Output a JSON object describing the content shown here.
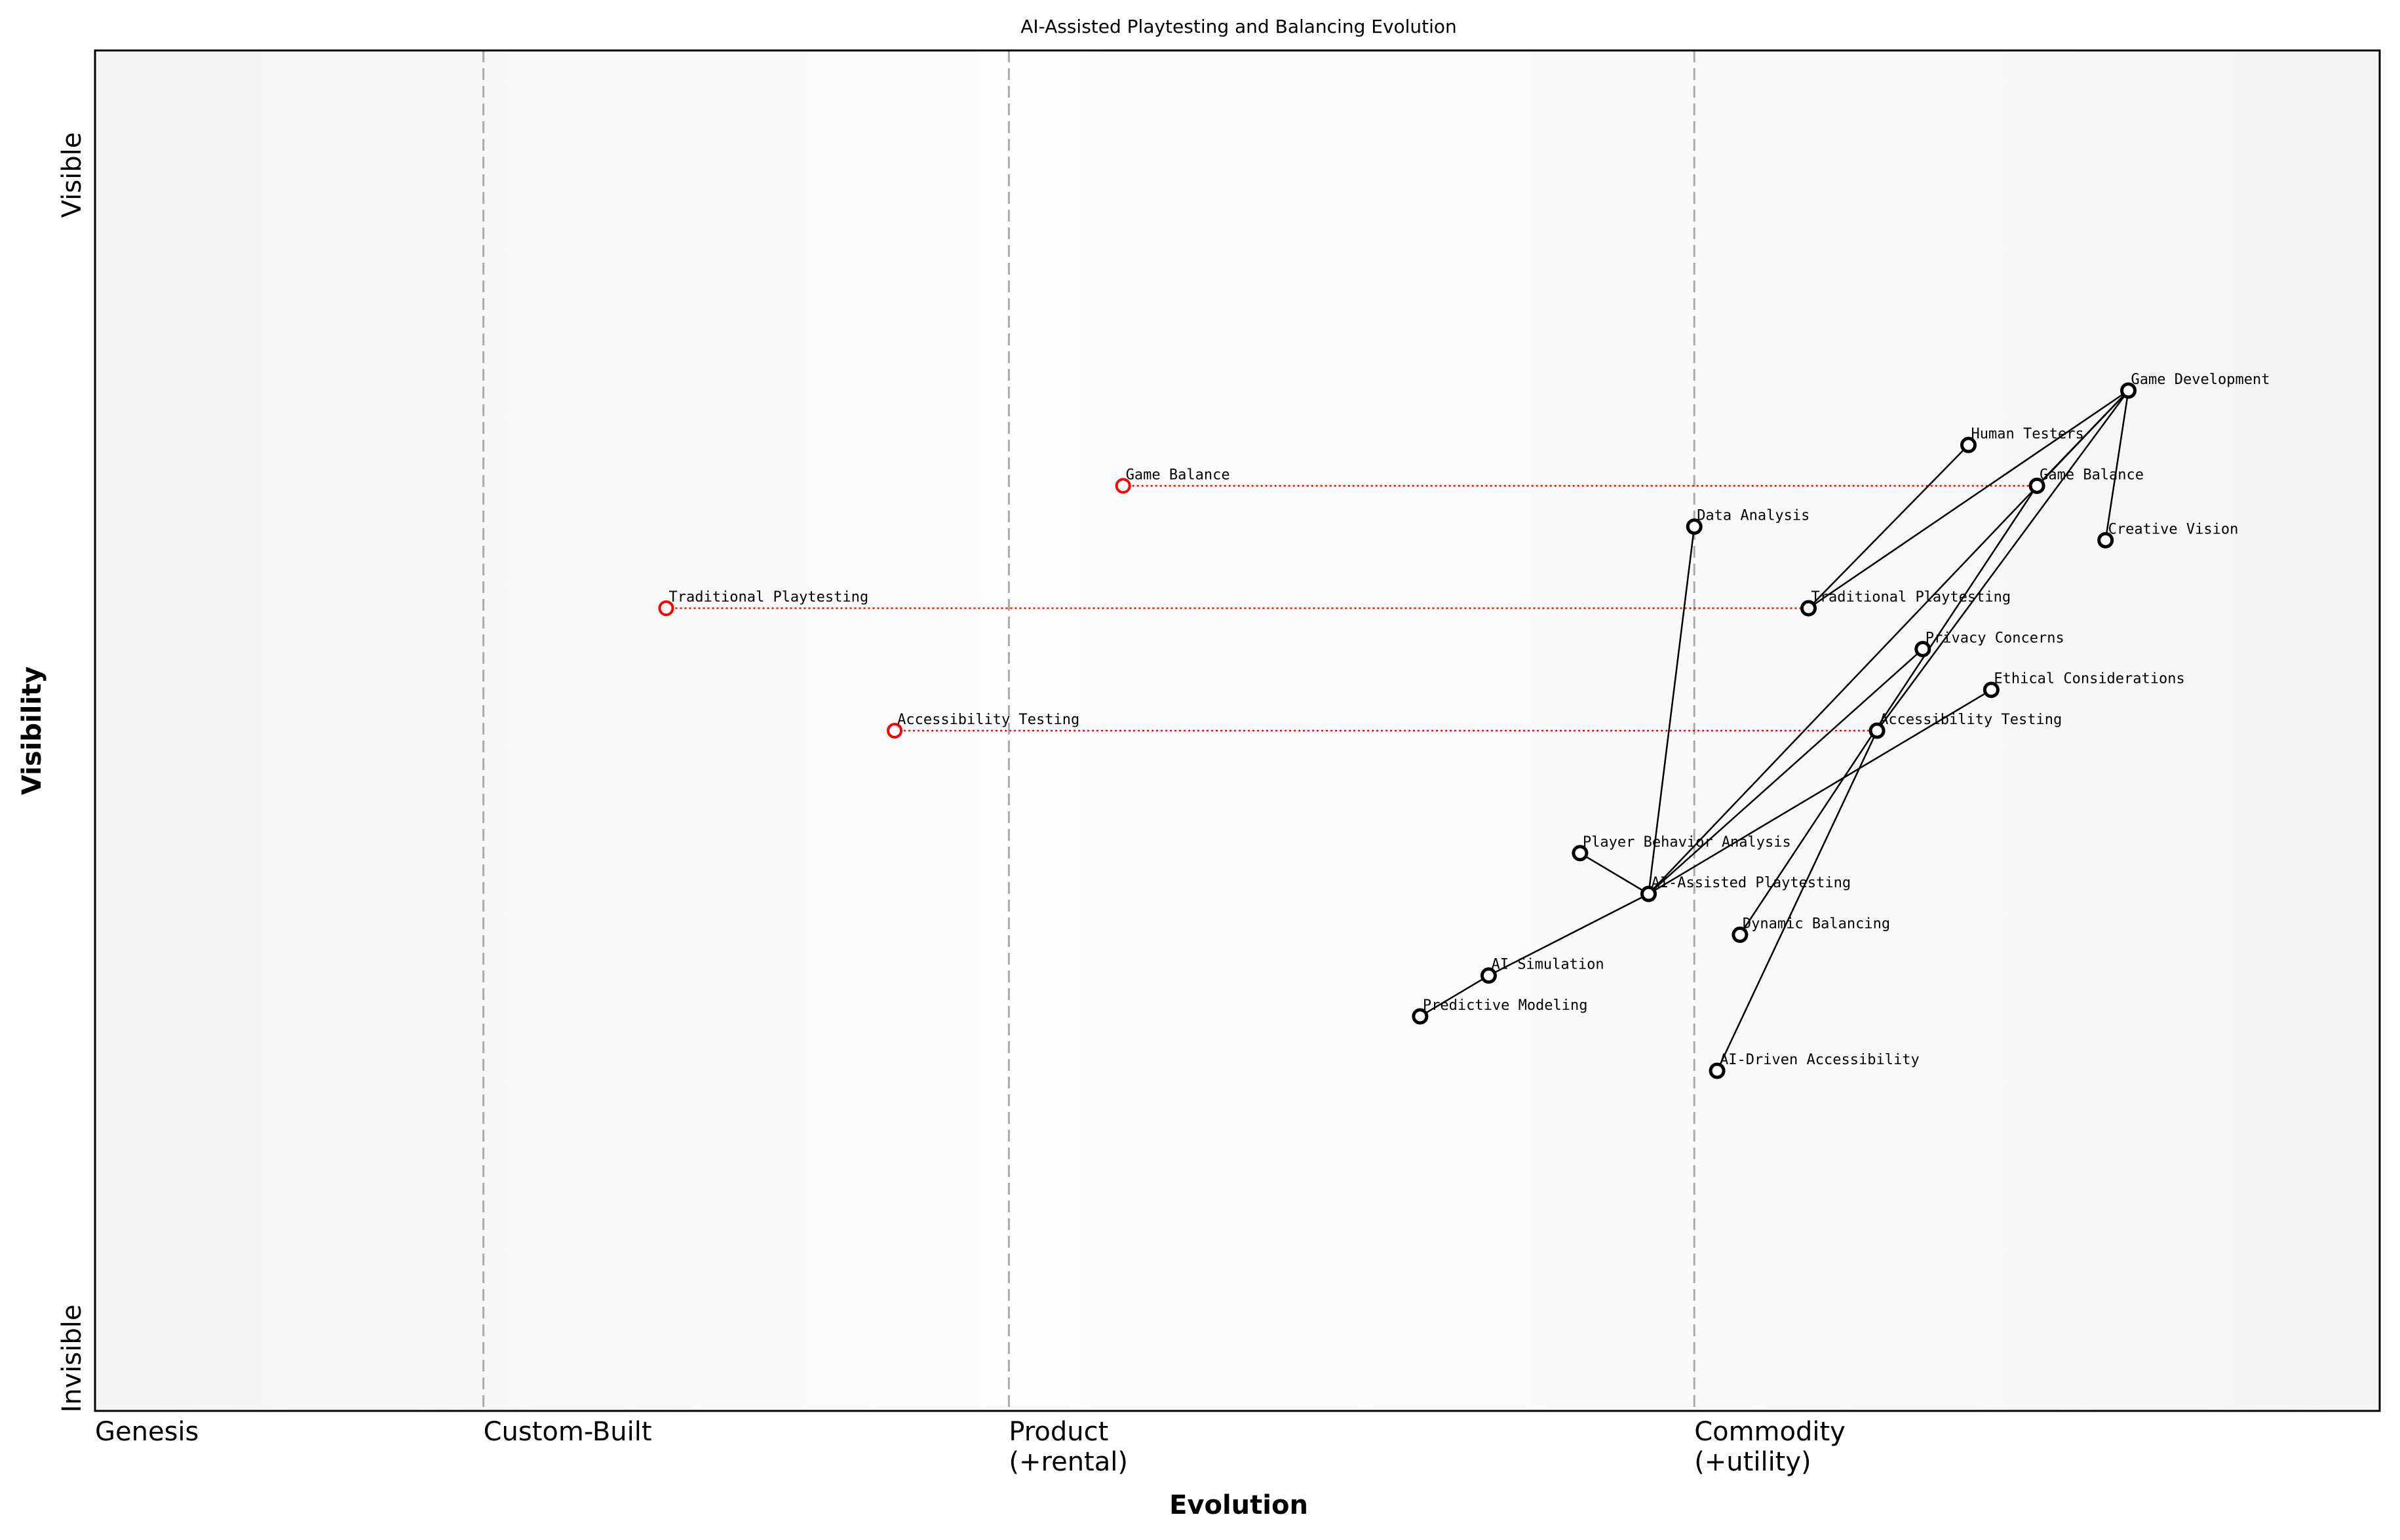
{
  "chart_data": {
    "type": "scatter",
    "title": "AI-Assisted Playtesting and Balancing Evolution",
    "xlabel": "Evolution",
    "ylabel": "Visibility",
    "xlim": [
      0,
      1
    ],
    "ylim": [
      0,
      1
    ],
    "grid": false,
    "x_stages": [
      {
        "label": "Genesis",
        "x": 0
      },
      {
        "label": "Custom-Built",
        "x": 0.17
      },
      {
        "label": "Product\n(+rental)",
        "x": 0.4
      },
      {
        "label": "Commodity\n(+utility)",
        "x": 0.7
      }
    ],
    "y_ticks": [
      {
        "label": "Invisible",
        "y": 0
      },
      {
        "label": "Visible",
        "y": 1
      }
    ],
    "components": [
      {
        "name": "Game Development",
        "x": 0.89,
        "y": 0.75
      },
      {
        "name": "Human Testers",
        "x": 0.82,
        "y": 0.71
      },
      {
        "name": "Game Balance",
        "x": 0.85,
        "y": 0.68
      },
      {
        "name": "Data Analysis",
        "x": 0.7,
        "y": 0.65
      },
      {
        "name": "Creative Vision",
        "x": 0.88,
        "y": 0.64
      },
      {
        "name": "Traditional Playtesting",
        "x": 0.75,
        "y": 0.59
      },
      {
        "name": "Privacy Concerns",
        "x": 0.8,
        "y": 0.56
      },
      {
        "name": "Ethical Considerations",
        "x": 0.83,
        "y": 0.53
      },
      {
        "name": "Accessibility Testing",
        "x": 0.78,
        "y": 0.5
      },
      {
        "name": "Player Behavior Analysis",
        "x": 0.65,
        "y": 0.41
      },
      {
        "name": "AI-Assisted Playtesting",
        "x": 0.68,
        "y": 0.38
      },
      {
        "name": "Dynamic Balancing",
        "x": 0.72,
        "y": 0.35
      },
      {
        "name": "AI Simulation",
        "x": 0.61,
        "y": 0.32
      },
      {
        "name": "Predictive Modeling",
        "x": 0.58,
        "y": 0.29
      },
      {
        "name": "AI-Driven Accessibility",
        "x": 0.71,
        "y": 0.25
      }
    ],
    "evolutions": [
      {
        "name": "Game Balance",
        "from_x": 0.45,
        "to_x": 0.85,
        "y": 0.68
      },
      {
        "name": "Traditional Playtesting",
        "from_x": 0.25,
        "to_x": 0.75,
        "y": 0.59
      },
      {
        "name": "Accessibility Testing",
        "from_x": 0.35,
        "to_x": 0.78,
        "y": 0.5
      }
    ],
    "links": [
      [
        "Game Development",
        "Game Balance"
      ],
      [
        "Game Development",
        "Traditional Playtesting"
      ],
      [
        "Game Development",
        "Creative Vision"
      ],
      [
        "Game Development",
        "Accessibility Testing"
      ],
      [
        "Game Development",
        "AI-Assisted Playtesting"
      ],
      [
        "Traditional Playtesting",
        "Human Testers"
      ],
      [
        "Game Balance",
        "Dynamic Balancing"
      ],
      [
        "Accessibility Testing",
        "AI-Driven Accessibility"
      ],
      [
        "AI-Assisted Playtesting",
        "Data Analysis"
      ],
      [
        "AI-Assisted Playtesting",
        "Player Behavior Analysis"
      ],
      [
        "AI-Assisted Playtesting",
        "AI Simulation"
      ],
      [
        "AI-Assisted Playtesting",
        "Privacy Concerns"
      ],
      [
        "AI-Assisted Playtesting",
        "Ethical Considerations"
      ],
      [
        "AI Simulation",
        "Predictive Modeling"
      ]
    ],
    "colors": {
      "component": "#000000",
      "evolution": "#ff0000",
      "stage_line": "#aaaaaa",
      "background": "#f5f5f5"
    }
  }
}
